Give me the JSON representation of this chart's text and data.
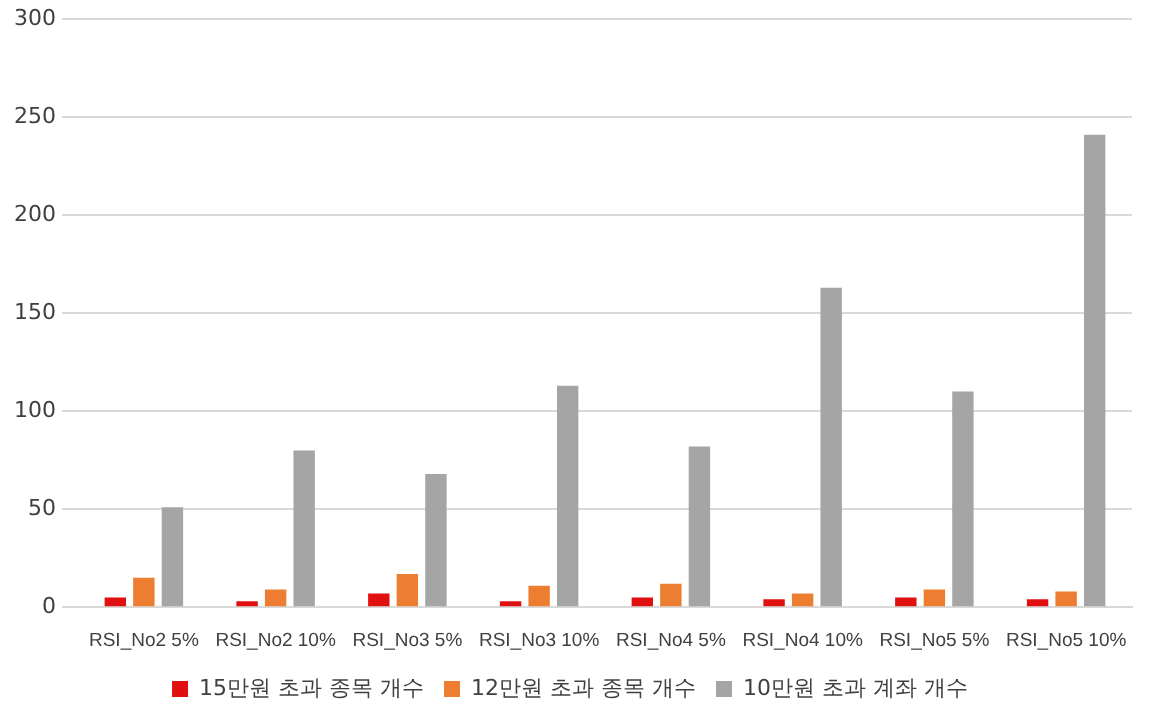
{
  "chart_data": {
    "type": "bar",
    "categories": [
      "RSI_No2 5%",
      "RSI_No2 10%",
      "RSI_No3 5%",
      "RSI_No3 10%",
      "RSI_No4 5%",
      "RSI_No4 10%",
      "RSI_No5 5%",
      "RSI_No5 10%"
    ],
    "series": [
      {
        "name": "15만원 초과 종목 개수",
        "color": "#e01010",
        "values": [
          5,
          3,
          7,
          3,
          5,
          4,
          5,
          4
        ]
      },
      {
        "name": "12만원 초과 종목 개수",
        "color": "#ed7d31",
        "values": [
          15,
          9,
          17,
          11,
          12,
          7,
          9,
          8
        ]
      },
      {
        "name": "10만원 초과 계좌 개수",
        "color": "#a5a5a5",
        "values": [
          51,
          80,
          68,
          113,
          82,
          163,
          110,
          241
        ]
      }
    ],
    "ylim": [
      0,
      300
    ],
    "yticks": [
      0,
      50,
      100,
      150,
      200,
      250,
      300
    ],
    "grid": "y",
    "legend": "bottom"
  }
}
